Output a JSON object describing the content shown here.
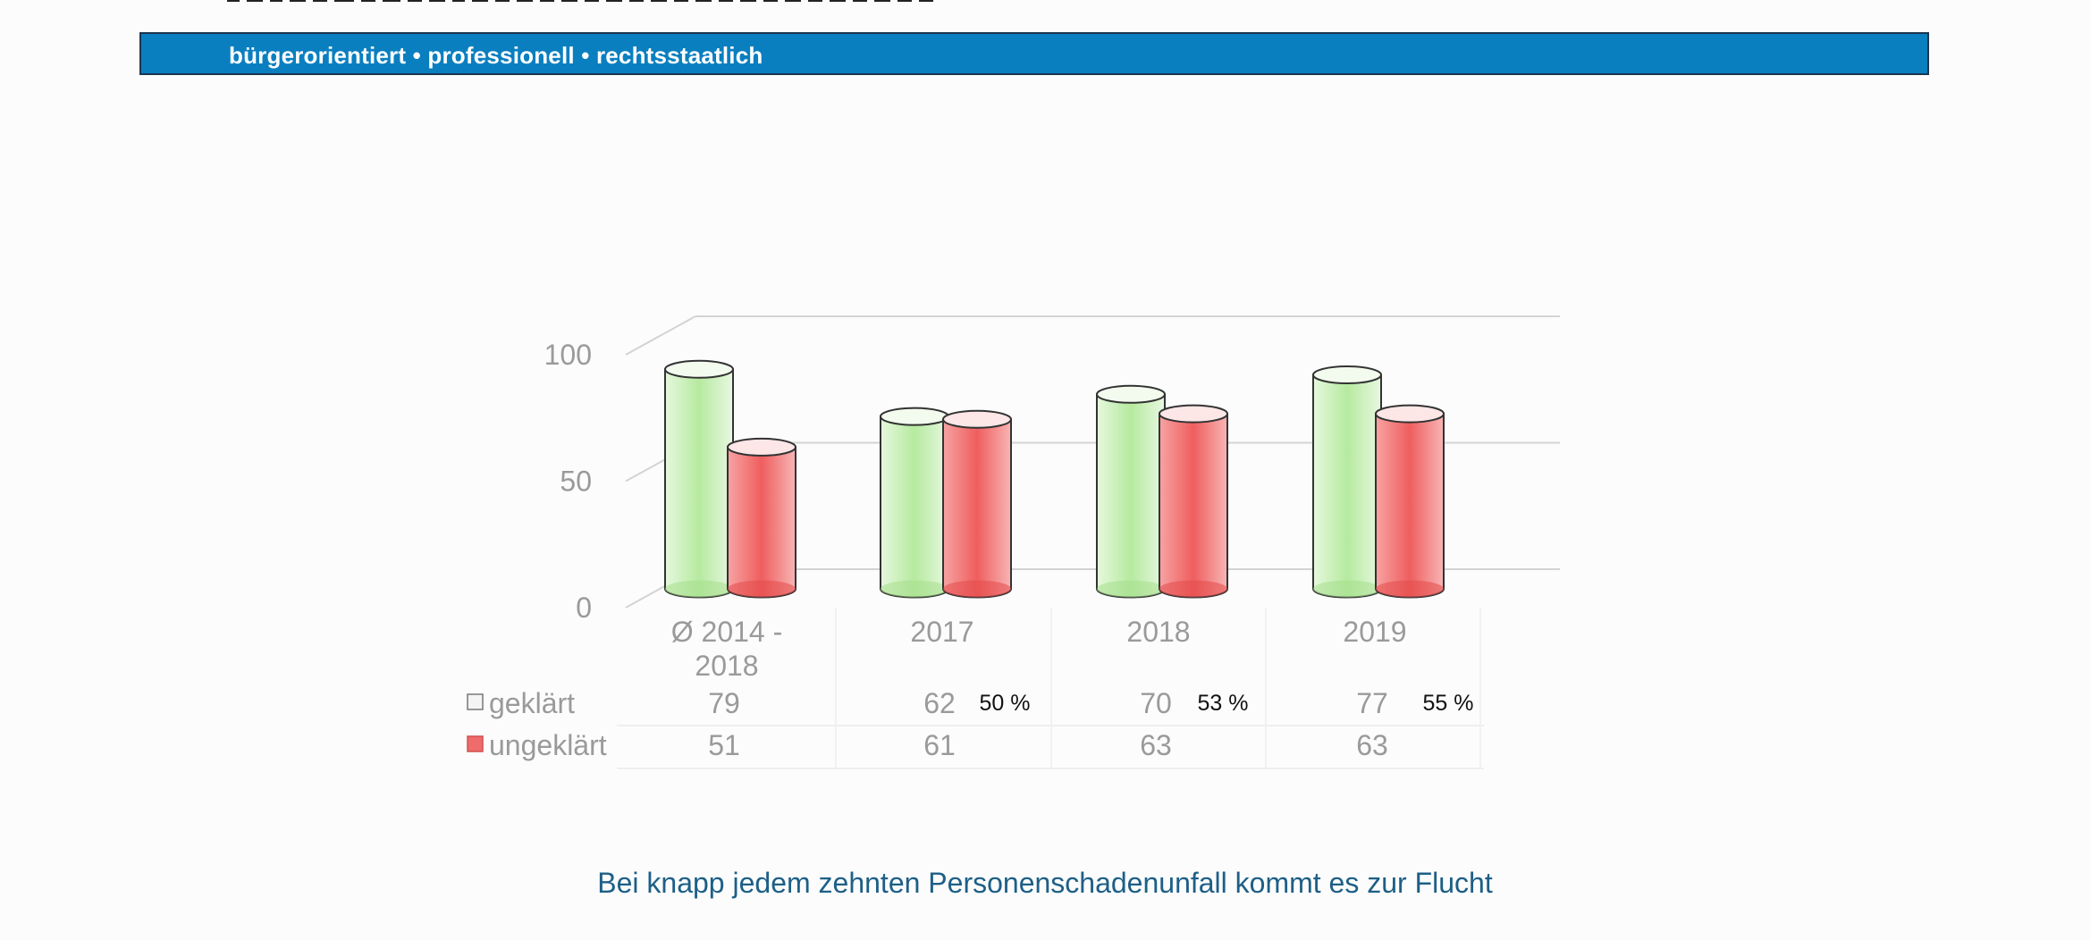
{
  "header": {
    "tagline": "bürgerorientiert • professionell • rechtsstaatlich",
    "bar_color": "#0a7fc0"
  },
  "chart_data": {
    "type": "bar",
    "style": "3d-cylinder",
    "categories": [
      "Ø 2014 - 2018",
      "2017",
      "2018",
      "2019"
    ],
    "series": [
      {
        "name": "geklärt",
        "values": [
          79,
          62,
          70,
          77
        ],
        "color": "#b8ebaa"
      },
      {
        "name": "ungeklärt",
        "values": [
          51,
          61,
          63,
          63
        ],
        "color": "#f06b6b"
      }
    ],
    "yticks": [
      0,
      50,
      100
    ],
    "ylim": [
      0,
      100
    ],
    "grid": true,
    "legend": "data-table-left",
    "annotations": [
      {
        "category": "2017",
        "text": "50 %"
      },
      {
        "category": "2018",
        "text": "53 %"
      },
      {
        "category": "2019",
        "text": "55 %"
      }
    ]
  },
  "caption": "Bei knapp jedem zehnten Personenschadenunfall kommt es zur Flucht"
}
